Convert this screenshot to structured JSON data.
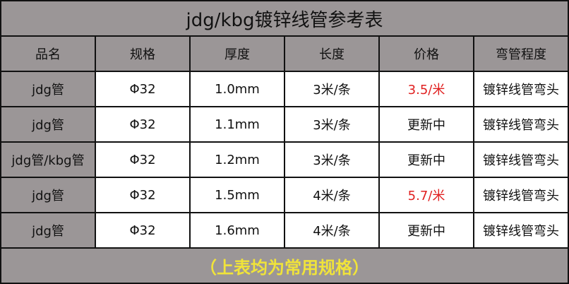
{
  "title": "jdg/kbg镀锌线管参考表",
  "headers": [
    "品名",
    "规格",
    "厚度",
    "长度",
    "价格",
    "弯管程度"
  ],
  "rows": [
    {
      "name": "jdg管",
      "spec": "Φ32",
      "thickness": "1.0mm",
      "length": "3米/条",
      "price": "3.5/米",
      "price_highlight": true,
      "bend": "镀锌线管弯头"
    },
    {
      "name": "jdg管",
      "spec": "Φ32",
      "thickness": "1.1mm",
      "length": "3米/条",
      "price": "更新中",
      "price_highlight": false,
      "bend": "镀锌线管弯头"
    },
    {
      "name": "jdg管/kbg管",
      "spec": "Φ32",
      "thickness": "1.2mm",
      "length": "3米/条",
      "price": "更新中",
      "price_highlight": false,
      "bend": "镀锌线管弯头"
    },
    {
      "name": "jdg管",
      "spec": "Φ32",
      "thickness": "1.5mm",
      "length": "4米/条",
      "price": "5.7/米",
      "price_highlight": true,
      "bend": "镀锌线管弯头"
    },
    {
      "name": "jdg管",
      "spec": "Φ32",
      "thickness": "1.6mm",
      "length": "4米/条",
      "price": "更新中",
      "price_highlight": false,
      "bend": "镀锌线管弯头"
    }
  ],
  "footer": "（上表均为常用规格）",
  "colors": {
    "background": "#9b9697",
    "highlight": "#e02020",
    "footer_text": "#f0e33a"
  }
}
